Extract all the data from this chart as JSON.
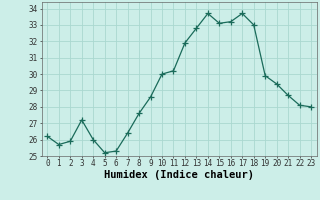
{
  "x": [
    0,
    1,
    2,
    3,
    4,
    5,
    6,
    7,
    8,
    9,
    10,
    11,
    12,
    13,
    14,
    15,
    16,
    17,
    18,
    19,
    20,
    21,
    22,
    23
  ],
  "y": [
    26.2,
    25.7,
    25.9,
    27.2,
    26.0,
    25.2,
    25.3,
    26.4,
    27.6,
    28.6,
    30.0,
    30.2,
    31.9,
    32.8,
    33.7,
    33.1,
    33.2,
    33.7,
    33.0,
    29.9,
    29.4,
    28.7,
    28.1,
    28.0
  ],
  "line_color": "#1a6b5a",
  "marker": "+",
  "marker_size": 4,
  "bg_color": "#cceee8",
  "grid_color": "#aad8d0",
  "xlabel": "Humidex (Indice chaleur)",
  "ylim": [
    25,
    34.4
  ],
  "xlim": [
    -0.5,
    23.5
  ],
  "yticks": [
    25,
    26,
    27,
    28,
    29,
    30,
    31,
    32,
    33,
    34
  ],
  "xticks": [
    0,
    1,
    2,
    3,
    4,
    5,
    6,
    7,
    8,
    9,
    10,
    11,
    12,
    13,
    14,
    15,
    16,
    17,
    18,
    19,
    20,
    21,
    22,
    23
  ],
  "tick_label_fontsize": 5.5,
  "xlabel_fontsize": 7.5
}
